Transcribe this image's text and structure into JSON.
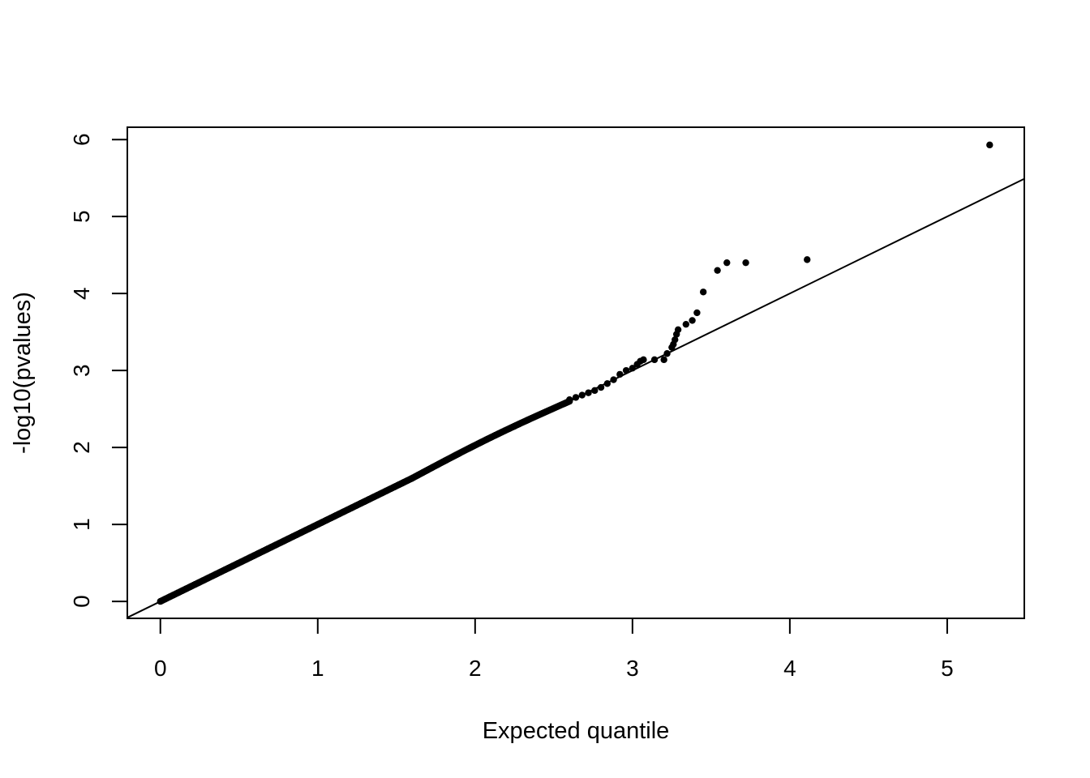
{
  "chart_data": {
    "type": "scatter",
    "title": "",
    "xlabel": "Expected quantile",
    "ylabel": "-log10(pvalues)",
    "xlim": [
      -0.21,
      5.49
    ],
    "ylim": [
      -0.22,
      6.16
    ],
    "x_ticks": [
      0,
      1,
      2,
      3,
      4,
      5
    ],
    "y_ticks": [
      0,
      1,
      2,
      3,
      4,
      5,
      6
    ],
    "grid": false,
    "legend": "none",
    "reference_line": {
      "intercept": 0,
      "slope": 1
    },
    "point_color": "#000000",
    "line_color": "#000000",
    "tail_points": [
      {
        "x": 2.6,
        "y": 2.62
      },
      {
        "x": 2.64,
        "y": 2.65
      },
      {
        "x": 2.68,
        "y": 2.68
      },
      {
        "x": 2.72,
        "y": 2.71
      },
      {
        "x": 2.76,
        "y": 2.74
      },
      {
        "x": 2.8,
        "y": 2.78
      },
      {
        "x": 2.84,
        "y": 2.83
      },
      {
        "x": 2.88,
        "y": 2.88
      },
      {
        "x": 2.92,
        "y": 2.95
      },
      {
        "x": 2.96,
        "y": 3.0
      },
      {
        "x": 3.0,
        "y": 3.03
      },
      {
        "x": 3.03,
        "y": 3.08
      },
      {
        "x": 3.05,
        "y": 3.12
      },
      {
        "x": 3.07,
        "y": 3.14
      },
      {
        "x": 3.14,
        "y": 3.14
      },
      {
        "x": 3.2,
        "y": 3.14
      },
      {
        "x": 3.22,
        "y": 3.22
      },
      {
        "x": 3.25,
        "y": 3.3
      },
      {
        "x": 3.26,
        "y": 3.34
      },
      {
        "x": 3.27,
        "y": 3.4
      },
      {
        "x": 3.28,
        "y": 3.47
      },
      {
        "x": 3.29,
        "y": 3.53
      },
      {
        "x": 3.34,
        "y": 3.6
      },
      {
        "x": 3.38,
        "y": 3.65
      },
      {
        "x": 3.41,
        "y": 3.75
      },
      {
        "x": 3.45,
        "y": 4.02
      },
      {
        "x": 3.54,
        "y": 4.3
      },
      {
        "x": 3.6,
        "y": 4.4
      },
      {
        "x": 3.72,
        "y": 4.4
      },
      {
        "x": 4.11,
        "y": 4.44
      },
      {
        "x": 5.27,
        "y": 5.93
      }
    ],
    "bulk_points": {
      "x_from": 0.0,
      "x_to": 2.6,
      "count": 260,
      "note": "observed values follow the y = x reference line closely, slightly above it between 1.6 and 2.6"
    }
  },
  "axis": {
    "x_tick_labels": [
      "0",
      "1",
      "2",
      "3",
      "4",
      "5"
    ],
    "y_tick_labels": [
      "0",
      "1",
      "2",
      "3",
      "4",
      "5",
      "6"
    ]
  }
}
